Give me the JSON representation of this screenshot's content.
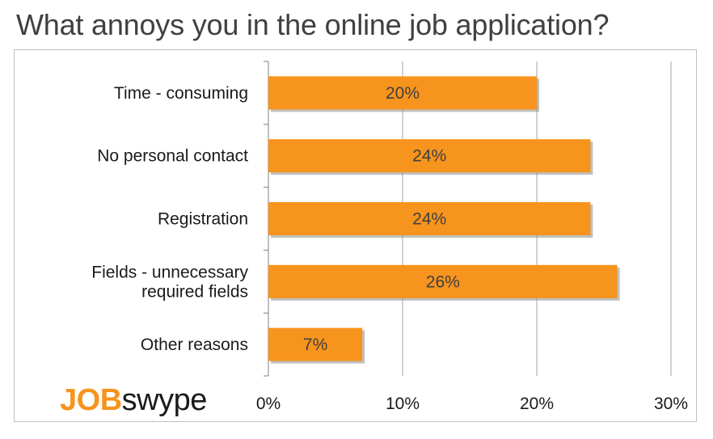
{
  "chart_data": {
    "type": "bar",
    "orientation": "horizontal",
    "title": "What annoys you in the online job application?",
    "categories": [
      [
        "Time - consuming"
      ],
      [
        "No personal contact"
      ],
      [
        "Registration"
      ],
      [
        "Fields - unnecessary",
        "required fields"
      ],
      [
        "Other reasons"
      ]
    ],
    "values": [
      20,
      24,
      24,
      26,
      7
    ],
    "data_labels": [
      "20%",
      "24%",
      "24%",
      "26%",
      "7%"
    ],
    "xlim": [
      0,
      30
    ],
    "x_ticks": [
      0,
      10,
      20,
      30
    ],
    "x_tick_labels": [
      "0%",
      "10%",
      "20%",
      "30%"
    ],
    "grid": "vertical",
    "bar_color": "#f7941d",
    "legend": "none"
  },
  "logo": {
    "text": "JOBswype",
    "parts": [
      "JO",
      "B",
      "swype"
    ],
    "accent_color": "#f7941d"
  }
}
